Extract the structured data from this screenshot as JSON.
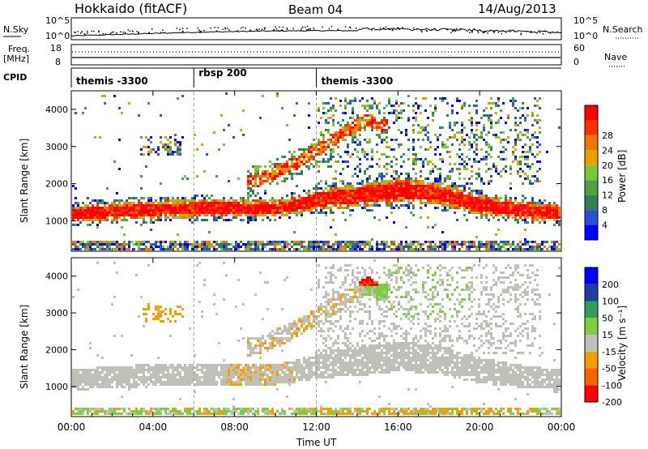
{
  "header": {
    "station": "Hokkaido (fitACF)",
    "beam": "Beam 04",
    "date": "14/Aug/2013"
  },
  "top_panel": {
    "left_label": "N.Sky",
    "right_label": "N.Search",
    "left_ticks": [
      "10^5",
      "10^0"
    ],
    "right_ticks": [
      "10^5",
      "10^0"
    ]
  },
  "freq_panel": {
    "left_label_1": "Freq.",
    "left_label_2": "[MHz]",
    "left_ticks": [
      "18",
      "8"
    ],
    "right_label": "Nave",
    "right_ticks": [
      "60",
      "0"
    ]
  },
  "cpid_panel": {
    "label": "CPID",
    "modes": [
      {
        "name": "themis -3300",
        "start_hour": 0
      },
      {
        "name": "rbsp 200",
        "start_hour": 6
      },
      {
        "name": "themis -3300",
        "start_hour": 12
      }
    ]
  },
  "x_axis": {
    "title": "Time UT",
    "ticks": [
      "00:00",
      "04:00",
      "08:00",
      "12:00",
      "16:00",
      "20:00",
      "00:00"
    ]
  },
  "power_panel": {
    "ylabel": "Slant Range [km]",
    "yticks": [
      "1000",
      "2000",
      "3000",
      "4000"
    ],
    "colorbar_label": "Power [dB]",
    "colorbar_ticks": [
      "4",
      "8",
      "12",
      "16",
      "20",
      "24",
      "28"
    ]
  },
  "velocity_panel": {
    "ylabel": "Slant Range [km]",
    "yticks": [
      "1000",
      "2000",
      "3000",
      "4000"
    ],
    "colorbar_label": "Velocity [m s⁻¹]",
    "colorbar_ticks": [
      "200",
      "100",
      "50",
      "15",
      "-15",
      "-50",
      "-100",
      "-200"
    ]
  },
  "chart_data": {
    "type": "heatmap",
    "title": "Hokkaido (fitACF) Beam 04 14/Aug/2013",
    "xlabel": "Time UT",
    "ylabel": "Slant Range [km]",
    "x_range_hours": [
      0,
      24
    ],
    "y_range_km": [
      180,
      4500
    ],
    "power_colorscale_db": [
      4,
      8,
      12,
      16,
      20,
      24,
      28
    ],
    "velocity_colorscale_ms": [
      -200,
      -100,
      -50,
      -15,
      15,
      50,
      100,
      200
    ],
    "colors": {
      "power": [
        "#0000ff",
        "#2a4fd0",
        "#2e7f5a",
        "#4fa046",
        "#7cc63a",
        "#e8a000",
        "#f07800",
        "#ff3000",
        "#ff0000"
      ],
      "velocity": [
        "#ff0000",
        "#ff6000",
        "#f0a000",
        "#c0c0b8",
        "#7ad040",
        "#2f9e5a",
        "#1f3fa0",
        "#0000ff"
      ]
    },
    "main_echo_band": [
      {
        "hour": 0,
        "center_km": 1200,
        "half_width_km": 200
      },
      {
        "hour": 2,
        "center_km": 1270,
        "half_width_km": 220
      },
      {
        "hour": 4,
        "center_km": 1320,
        "half_width_km": 220
      },
      {
        "hour": 6,
        "center_km": 1350,
        "half_width_km": 220
      },
      {
        "hour": 8,
        "center_km": 1350,
        "half_width_km": 220
      },
      {
        "hour": 10,
        "center_km": 1350,
        "half_width_km": 200
      },
      {
        "hour": 11,
        "center_km": 1450,
        "half_width_km": 220
      },
      {
        "hour": 12,
        "center_km": 1600,
        "half_width_km": 260
      },
      {
        "hour": 14,
        "center_km": 1700,
        "half_width_km": 280
      },
      {
        "hour": 16,
        "center_km": 1850,
        "half_width_km": 300
      },
      {
        "hour": 18,
        "center_km": 1750,
        "half_width_km": 280
      },
      {
        "hour": 20,
        "center_km": 1450,
        "half_width_km": 250
      },
      {
        "hour": 22,
        "center_km": 1300,
        "half_width_km": 220
      },
      {
        "hour": 24,
        "center_km": 1200,
        "half_width_km": 200
      }
    ],
    "upper_echo_arc": [
      {
        "hour": 9,
        "center_km": 2100
      },
      {
        "hour": 11,
        "center_km": 2600
      },
      {
        "hour": 13,
        "center_km": 3300
      },
      {
        "hour": 14.5,
        "center_km": 3800
      },
      {
        "hour": 15,
        "center_km": 3600
      }
    ]
  }
}
